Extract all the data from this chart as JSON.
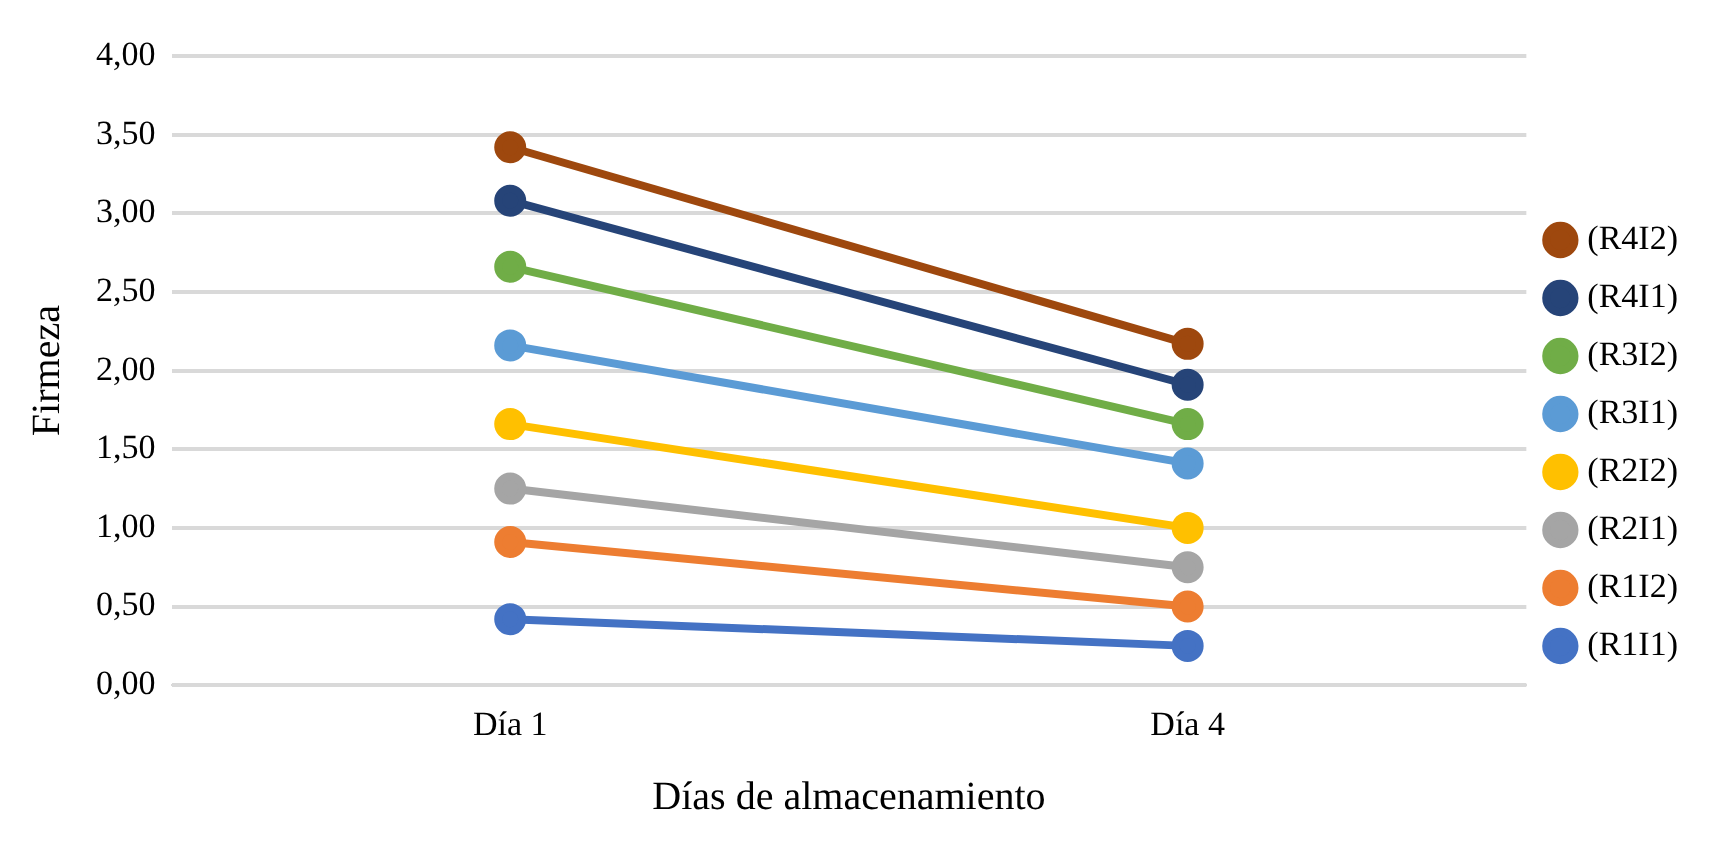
{
  "chart_data": {
    "type": "line",
    "xlabel": "Días de almacenamiento",
    "ylabel": "Firmeza",
    "categories": [
      "Día 1",
      "Día 4"
    ],
    "series": [
      {
        "name": "(R4I2)",
        "color": "#9e480e",
        "values": [
          3.42,
          2.17
        ]
      },
      {
        "name": "(R4I1)",
        "color": "#264478",
        "values": [
          3.08,
          1.91
        ]
      },
      {
        "name": "(R3I2)",
        "color": "#70ad47",
        "values": [
          2.66,
          1.66
        ]
      },
      {
        "name": "(R3I1)",
        "color": "#5b9bd5",
        "values": [
          2.16,
          1.41
        ]
      },
      {
        "name": "(R2I2)",
        "color": "#ffc000",
        "values": [
          1.66,
          1.0
        ]
      },
      {
        "name": "(R2I1)",
        "color": "#a5a5a5",
        "values": [
          1.25,
          0.75
        ]
      },
      {
        "name": "(R1I2)",
        "color": "#ed7d31",
        "values": [
          0.91,
          0.5
        ]
      },
      {
        "name": "(R1I1)",
        "color": "#4472c4",
        "values": [
          0.42,
          0.25
        ]
      }
    ],
    "ylim": [
      0,
      4
    ],
    "yticks": [
      {
        "value": 0,
        "label": "0,00"
      },
      {
        "value": 0.5,
        "label": "0,50"
      },
      {
        "value": 1,
        "label": "1,00"
      },
      {
        "value": 1.5,
        "label": "1,50"
      },
      {
        "value": 2,
        "label": "2,00"
      },
      {
        "value": 2.5,
        "label": "2,50"
      },
      {
        "value": 3,
        "label": "3,00"
      },
      {
        "value": 3.5,
        "label": "3,50"
      },
      {
        "value": 4,
        "label": "4,00"
      }
    ],
    "grid": "y",
    "legend": "right",
    "marker": "circle",
    "line_style": "solid"
  }
}
